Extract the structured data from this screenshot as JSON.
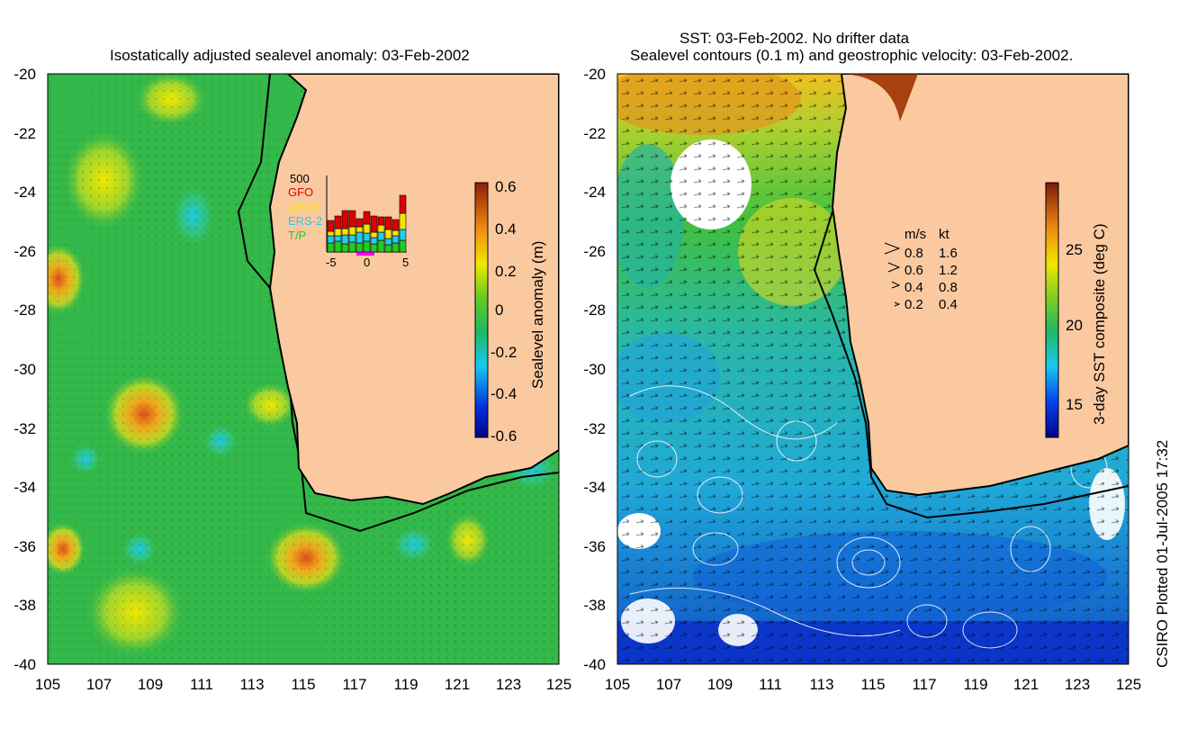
{
  "left_panel": {
    "title": "Isostatically adjusted sealevel anomaly: 03-Feb-2002",
    "colorbar": {
      "label": "Sealevel anomaly (m)",
      "ticks": [
        "0.6",
        "0.4",
        "0.2",
        "0",
        "-0.2",
        "-0.4",
        "-0.6"
      ],
      "range": [
        -0.6,
        0.6
      ]
    },
    "inset": {
      "max_label": "500",
      "series": [
        {
          "name": "GFO",
          "color": "#dd0000"
        },
        {
          "name": "Jason",
          "color": "#f2e600"
        },
        {
          "name": "ERS-2",
          "color": "#22ccee"
        },
        {
          "name": "T/P",
          "color": "#22cc22"
        }
      ],
      "x_ticks": [
        "-5",
        "0",
        "5"
      ]
    }
  },
  "right_panel": {
    "title_line1": "SST: 03-Feb-2002. No drifter data",
    "title_line2": "Sealevel contours (0.1 m) and geostrophic velocity: 03-Feb-2002.",
    "colorbar": {
      "label": "3-day SST composite (deg C)",
      "ticks": [
        "25",
        "20",
        "15"
      ],
      "range": [
        13,
        29
      ]
    },
    "velocity_key": {
      "header_ms": "m/s",
      "header_kt": "kt",
      "rows": [
        {
          "ms": "0.8",
          "kt": "1.6"
        },
        {
          "ms": "0.6",
          "kt": "1.2"
        },
        {
          "ms": "0.4",
          "kt": "0.8"
        },
        {
          "ms": "0.2",
          "kt": "0.4"
        }
      ]
    }
  },
  "axes": {
    "lat_labels": [
      "-20",
      "-22",
      "-24",
      "-26",
      "-28",
      "-30",
      "-32",
      "-34",
      "-36",
      "-38",
      "-40"
    ],
    "lon_labels": [
      "105",
      "107",
      "109",
      "111",
      "113",
      "115",
      "117",
      "119",
      "121",
      "123",
      "125"
    ],
    "lat_range": [
      -40,
      -20
    ],
    "lon_range": [
      105,
      125
    ]
  },
  "credit": "CSIRO Plotted 01-Jul-2005 17:32",
  "colors": {
    "land": "#fac9a0",
    "ocean_green": "#33b84a"
  }
}
